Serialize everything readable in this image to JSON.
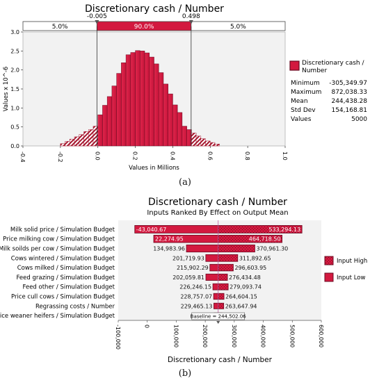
{
  "chart_data": [
    {
      "type": "bar",
      "subtype": "histogram",
      "title": "Discretionary cash / Number",
      "xlabel": "Values in Millions",
      "ylabel": "Values x 10^-6",
      "xlim": [
        -0.4,
        1.0
      ],
      "ylim": [
        0,
        3.0
      ],
      "x_ticks": [
        "-0.4",
        "-0.2",
        "0.0",
        "0.2",
        "0.4",
        "0.6",
        "0.8",
        "1.0"
      ],
      "y_ticks": [
        "0.0",
        "0.5",
        "1.0",
        "1.5",
        "2.0",
        "2.5",
        "3.0"
      ],
      "delimiters": {
        "left_value": "-0.005",
        "right_value": "0.498",
        "left_pct": "5.0%",
        "middle_pct": "90.0%",
        "right_pct": "5.0%",
        "left": -0.005,
        "right": 0.498
      },
      "bins": {
        "start": -0.2,
        "width": 0.025,
        "values": [
          0.06,
          0.12,
          0.18,
          0.24,
          0.3,
          0.38,
          0.43,
          0.52,
          0.82,
          1.07,
          1.3,
          1.58,
          1.91,
          2.19,
          2.4,
          2.46,
          2.51,
          2.5,
          2.45,
          2.34,
          2.16,
          1.93,
          1.63,
          1.37,
          1.08,
          0.88,
          0.52,
          0.43,
          0.34,
          0.26,
          0.19,
          0.13,
          0.09,
          0.05
        ]
      },
      "legend": {
        "name": "Discretionary cash / Number",
        "stats": [
          {
            "label": "Minimum",
            "value": "-305,349.97"
          },
          {
            "label": "Maximum",
            "value": "872,038.33"
          },
          {
            "label": "Mean",
            "value": "244,438.28"
          },
          {
            "label": "Std Dev",
            "value": "154,168.81"
          },
          {
            "label": "Values",
            "value": "5000"
          }
        ]
      },
      "colors": {
        "fill": "#d3193f",
        "dark": "#6a0b22",
        "hatch": "#a6172f",
        "frame": "#f2f2f2"
      },
      "caption": "(a)"
    },
    {
      "type": "bar",
      "subtype": "tornado",
      "title": "Discretionary cash / Number",
      "subtitle": "Inputs Ranked By Effect on Output Mean",
      "xlabel": "Discretionary cash / Number",
      "xlim": [
        -100000,
        600000
      ],
      "x_ticks": [
        -100000,
        0,
        100000,
        200000,
        300000,
        400000,
        500000,
        600000
      ],
      "x_tick_labels": [
        "-100,000",
        "0",
        "100,000",
        "200,000",
        "300,000",
        "400,000",
        "500,000",
        "600,000"
      ],
      "baseline": 244502.06,
      "baseline_label": "Baseline = 244,502.06",
      "categories": [
        "Milk solid price / Simulation Budget",
        "Price milking cow / Simulation Budget",
        "Milk soilds per cow / Simulation Budget",
        "Cows wintered / Simulation Budget",
        "Cows milked / Simulation Budget",
        "Feed grazing / Simulation Budget",
        "Feed other / Simulation Budget",
        "Price cull cows / Simulation Budget",
        "Regrassing costs / Number",
        "Price weaner heifers / Simulation Budget"
      ],
      "low_values": [
        -43040.67,
        22274.95,
        134983.96,
        201719.93,
        215902.29,
        202059.81,
        226246.15,
        228757.07,
        229465.13,
        231000
      ],
      "high_values": [
        533294.13,
        464718.5,
        370961.3,
        311892.65,
        296603.95,
        276434.48,
        279093.74,
        264604.15,
        263647.94,
        258000
      ],
      "low_labels": [
        "-43,040.67",
        "22,274.95",
        "134,983.96",
        "201,719.93",
        "215,902.29",
        "202,059.81",
        "226,246.15",
        "228,757.07",
        "229,465.13",
        ""
      ],
      "high_labels": [
        "533,294.13",
        "464,718.50",
        "370,961.30",
        "311,892.65",
        "296,603.95",
        "276,434.48",
        "279,093.74",
        "264,604.15",
        "263,647.94",
        ""
      ],
      "legend": [
        {
          "name": "Input High",
          "pattern": "hatch"
        },
        {
          "name": "Input Low",
          "pattern": "solid"
        }
      ],
      "colors": {
        "low": "#d3193f",
        "high": "#d3193f",
        "dark": "#6a0b22",
        "frame": "#f2f2f2",
        "baseline": "#c060a0"
      },
      "caption": "(b)"
    }
  ]
}
